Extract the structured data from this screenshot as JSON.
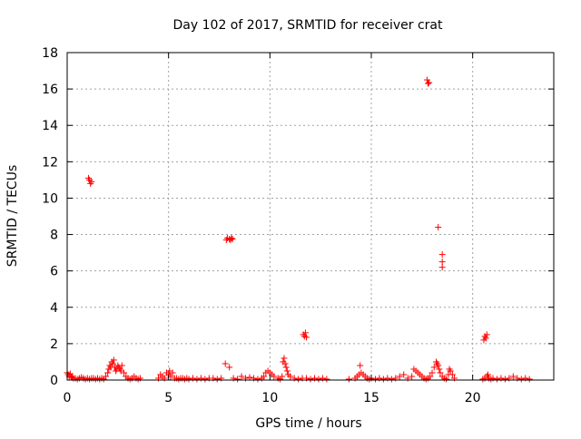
{
  "chart_data": {
    "type": "scatter",
    "title": "Day 102 of 2017, SRMTID for receiver crat",
    "xlabel": "GPS time / hours",
    "ylabel": "SRMTID / TECUs",
    "xlim": [
      0,
      24
    ],
    "ylim": [
      0,
      18
    ],
    "xticks": [
      0,
      5,
      10,
      15,
      20
    ],
    "xtick_labels": [
      "0",
      "5",
      "10",
      "15",
      "20"
    ],
    "yticks": [
      0,
      2,
      4,
      6,
      8,
      10,
      12,
      14,
      16,
      18
    ],
    "ytick_labels": [
      "0",
      "2",
      "4",
      "6",
      "8",
      "10",
      "12",
      "14",
      "16",
      "18"
    ],
    "grid": true,
    "marker": "+",
    "color": "#ff0000",
    "series": [
      {
        "name": "SRMTID",
        "x": [
          0.0,
          0.05,
          0.1,
          0.15,
          0.2,
          0.25,
          0.3,
          0.4,
          0.5,
          0.6,
          0.7,
          0.8,
          0.9,
          1.0,
          1.1,
          1.2,
          1.3,
          1.4,
          1.5,
          1.6,
          1.7,
          1.8,
          1.9,
          2.0,
          2.05,
          2.1,
          2.15,
          2.2,
          2.25,
          2.3,
          2.35,
          2.4,
          2.45,
          2.5,
          2.55,
          2.6,
          2.65,
          2.7,
          2.8,
          2.9,
          3.0,
          3.1,
          3.2,
          3.3,
          3.4,
          3.5,
          3.6,
          1.05,
          1.1,
          1.15,
          1.2,
          4.5,
          4.6,
          4.7,
          4.8,
          4.9,
          5.0,
          5.05,
          5.1,
          5.2,
          5.3,
          5.4,
          5.5,
          5.6,
          5.7,
          5.8,
          5.9,
          6.0,
          6.2,
          6.4,
          6.6,
          6.8,
          7.0,
          7.2,
          7.4,
          7.6,
          7.8,
          8.0,
          8.2,
          8.4,
          8.6,
          8.8,
          9.0,
          9.2,
          9.4,
          9.6,
          9.7,
          9.8,
          9.9,
          10.0,
          10.1,
          10.2,
          10.4,
          10.5,
          10.6,
          10.65,
          10.7,
          10.75,
          10.8,
          10.85,
          10.9,
          11.0,
          11.2,
          11.4,
          11.6,
          11.8,
          12.0,
          12.2,
          12.4,
          12.6,
          12.8,
          7.85,
          7.9,
          8.0,
          8.05,
          8.1,
          8.15,
          11.65,
          11.7,
          11.75,
          11.8,
          13.9,
          14.2,
          14.3,
          14.4,
          14.45,
          14.5,
          14.6,
          14.7,
          14.8,
          14.9,
          15.0,
          15.2,
          15.4,
          15.6,
          15.8,
          16.0,
          16.2,
          16.4,
          16.6,
          16.8,
          17.0,
          17.1,
          17.2,
          17.3,
          17.4,
          17.5,
          17.6,
          17.7,
          17.8,
          17.9,
          18.0,
          18.1,
          18.2,
          18.25,
          18.3,
          18.35,
          18.4,
          18.5,
          18.6,
          18.7,
          18.8,
          18.85,
          18.9,
          19.0,
          19.1,
          17.75,
          17.8,
          17.85,
          18.3,
          18.5,
          18.5,
          18.5,
          20.5,
          20.6,
          20.7,
          20.75,
          20.8,
          20.9,
          21.0,
          21.2,
          21.4,
          21.6,
          21.8,
          22.0,
          22.2,
          22.4,
          22.6,
          22.8,
          20.55,
          20.6,
          20.65,
          20.7
        ],
        "y": [
          0.4,
          0.3,
          0.2,
          0.35,
          0.2,
          0.15,
          0.1,
          0.1,
          0.05,
          0.1,
          0.15,
          0.1,
          0.05,
          0.1,
          0.05,
          0.1,
          0.1,
          0.05,
          0.1,
          0.05,
          0.1,
          0.05,
          0.2,
          0.4,
          0.6,
          0.8,
          0.7,
          1.0,
          0.9,
          1.1,
          0.7,
          0.5,
          0.6,
          0.8,
          0.7,
          0.6,
          0.5,
          0.8,
          0.4,
          0.2,
          0.1,
          0.05,
          0.1,
          0.2,
          0.1,
          0.05,
          0.1,
          11.1,
          11.0,
          10.8,
          10.9,
          0.1,
          0.3,
          0.2,
          0.1,
          0.4,
          0.3,
          0.5,
          0.2,
          0.4,
          0.1,
          0.1,
          0.05,
          0.1,
          0.1,
          0.05,
          0.1,
          0.05,
          0.1,
          0.05,
          0.1,
          0.05,
          0.1,
          0.1,
          0.05,
          0.1,
          0.9,
          0.7,
          0.1,
          0.05,
          0.2,
          0.1,
          0.15,
          0.1,
          0.05,
          0.1,
          0.2,
          0.4,
          0.5,
          0.4,
          0.3,
          0.2,
          0.1,
          0.05,
          0.2,
          1.0,
          1.2,
          0.9,
          0.7,
          0.5,
          0.3,
          0.2,
          0.1,
          0.05,
          0.1,
          0.1,
          0.05,
          0.1,
          0.05,
          0.1,
          0.05,
          7.7,
          7.8,
          7.75,
          7.7,
          7.8,
          7.75,
          2.5,
          2.4,
          2.6,
          2.35,
          0.05,
          0.1,
          0.2,
          0.3,
          0.8,
          0.4,
          0.3,
          0.2,
          0.1,
          0.05,
          0.1,
          0.05,
          0.1,
          0.05,
          0.1,
          0.05,
          0.1,
          0.2,
          0.3,
          0.1,
          0.2,
          0.6,
          0.5,
          0.4,
          0.3,
          0.2,
          0.1,
          0.05,
          0.1,
          0.2,
          0.4,
          0.7,
          1.0,
          0.9,
          0.8,
          0.6,
          0.4,
          0.2,
          0.1,
          0.05,
          0.3,
          0.6,
          0.5,
          0.3,
          0.1,
          16.5,
          16.3,
          16.35,
          8.4,
          6.9,
          6.5,
          6.2,
          0.05,
          0.1,
          0.2,
          0.3,
          0.1,
          0.05,
          0.1,
          0.05,
          0.1,
          0.05,
          0.1,
          0.2,
          0.1,
          0.05,
          0.1,
          0.05,
          2.2,
          2.4,
          2.3,
          2.5
        ]
      }
    ]
  }
}
